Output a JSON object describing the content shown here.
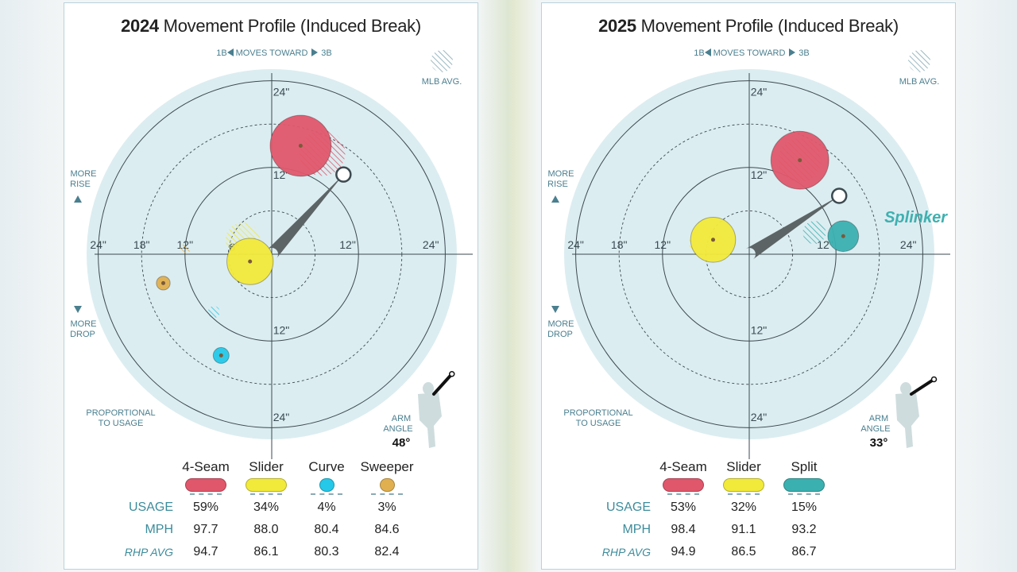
{
  "chart_data": [
    {
      "type": "scatter",
      "title_year": "2024",
      "title_text": "Movement Profile (Induced Break)",
      "direction_label_1b": "1B",
      "direction_label_mid": "MOVES TOWARD",
      "direction_label_3b": "3B",
      "mlb_avg_label": "MLB AVG.",
      "more_rise_label": [
        "MORE",
        "RISE"
      ],
      "more_drop_label": [
        "MORE",
        "DROP"
      ],
      "proportional_label": [
        "PROPORTIONAL",
        "TO USAGE"
      ],
      "arm_angle_label": [
        "ARM",
        "ANGLE"
      ],
      "arm_angle_value": "48°",
      "arm_angle_deg": 48,
      "ring_ticks_inches": [
        6,
        12,
        18,
        24
      ],
      "tick_labels": {
        "left": [
          "24\"",
          "18\"",
          "12\""
        ],
        "right": [
          "12\"",
          "24\""
        ],
        "top": [
          "24\"",
          "12\""
        ],
        "bottom": [
          "12\"",
          "24\""
        ],
        "inner": "6\""
      },
      "annotation": "",
      "pitches": [
        {
          "name": "4-Seam",
          "color": "#e0576c",
          "x": 4,
          "y": 15,
          "avg_x": 7,
          "avg_y": 14,
          "usage": "59%",
          "mph": "97.7",
          "rhp_avg": "94.7",
          "usage_pct": 59
        },
        {
          "name": "Slider",
          "color": "#f2ea3a",
          "x": -3,
          "y": -1,
          "avg_x": -4,
          "avg_y": 2,
          "usage": "34%",
          "mph": "88.0",
          "rhp_avg": "86.1",
          "usage_pct": 34
        },
        {
          "name": "Curve",
          "color": "#25c8e8",
          "x": -7,
          "y": -14,
          "avg_x": -8,
          "avg_y": -8,
          "usage": "4%",
          "mph": "80.4",
          "rhp_avg": "80.3",
          "usage_pct": 4
        },
        {
          "name": "Sweeper",
          "color": "#e0b050",
          "x": -15,
          "y": -4,
          "avg_x": -12,
          "avg_y": 0.7,
          "usage": "3%",
          "mph": "84.6",
          "rhp_avg": "82.4",
          "usage_pct": 3
        }
      ],
      "row_labels": {
        "usage": "USAGE",
        "mph": "MPH",
        "rhp_avg": "RHP AVG"
      }
    },
    {
      "type": "scatter",
      "title_year": "2025",
      "title_text": "Movement Profile (Induced Break)",
      "direction_label_1b": "1B",
      "direction_label_mid": "MOVES TOWARD",
      "direction_label_3b": "3B",
      "mlb_avg_label": "MLB AVG.",
      "more_rise_label": [
        "MORE",
        "RISE"
      ],
      "more_drop_label": [
        "MORE",
        "DROP"
      ],
      "proportional_label": [
        "PROPORTIONAL",
        "TO USAGE"
      ],
      "arm_angle_label": [
        "ARM",
        "ANGLE"
      ],
      "arm_angle_value": "33°",
      "arm_angle_deg": 33,
      "ring_ticks_inches": [
        6,
        12,
        18,
        24
      ],
      "tick_labels": {
        "left": [
          "24\"",
          "18\"",
          "12\""
        ],
        "right": [
          "12\"",
          "24\""
        ],
        "top": [
          "24\"",
          "12\""
        ],
        "bottom": [
          "12\"",
          "24\""
        ],
        "inner": ""
      },
      "annotation": "Splinker",
      "pitches": [
        {
          "name": "4-Seam",
          "color": "#e0576c",
          "x": 7,
          "y": 13,
          "avg_x": 7,
          "avg_y": 13,
          "usage": "53%",
          "mph": "98.4",
          "rhp_avg": "94.9",
          "usage_pct": 53
        },
        {
          "name": "Slider",
          "color": "#f2ea3a",
          "x": -5,
          "y": 2,
          "avg_x": -6,
          "avg_y": 1.5,
          "usage": "32%",
          "mph": "91.1",
          "rhp_avg": "86.5",
          "usage_pct": 32
        },
        {
          "name": "Split",
          "color": "#3bb0b0",
          "x": 13,
          "y": 2.5,
          "avg_x": 9,
          "avg_y": 3,
          "usage": "15%",
          "mph": "93.2",
          "rhp_avg": "86.7",
          "usage_pct": 15
        }
      ],
      "row_labels": {
        "usage": "USAGE",
        "mph": "MPH",
        "rhp_avg": "RHP AVG"
      }
    }
  ]
}
